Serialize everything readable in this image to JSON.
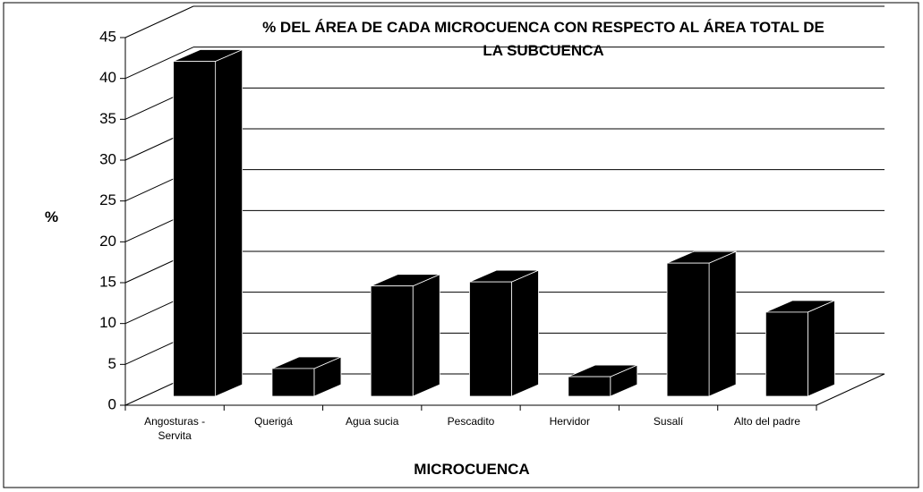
{
  "chart_data": {
    "type": "bar3d",
    "title": "% DEL ÁREA DE CADA MICROCUENCA CON RESPECTO AL ÁREA TOTAL DE LA SUBCUENCA",
    "x_label": "MICROCUENCA",
    "y_label": "%",
    "categories": [
      "Angosturas - Servita",
      "Querigá",
      "Agua sucia",
      "Pescadito",
      "Hervidor",
      "Susalí",
      "Alto del padre"
    ],
    "values": [
      41,
      3.4,
      13.5,
      14,
      2.4,
      16.3,
      10.3
    ],
    "color": "#000000",
    "ylim": [
      0,
      45
    ],
    "yticks": [
      0,
      5,
      10,
      15,
      20,
      25,
      30,
      35,
      40,
      45
    ],
    "grid": true
  }
}
